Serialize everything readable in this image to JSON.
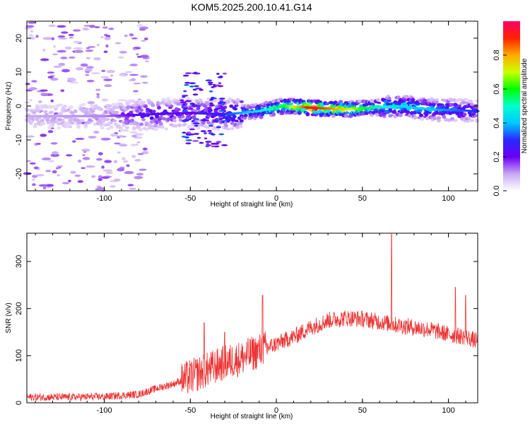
{
  "chart_data": [
    {
      "type": "heatmap",
      "title": "KOM5.2025.200.10.41.G14",
      "xlabel": "Height of straight line (km)",
      "ylabel": "Frequency (Hz)",
      "xlim": [
        -145,
        117
      ],
      "ylim": [
        -25,
        25
      ],
      "xticks": [
        -100,
        -50,
        0,
        50,
        100
      ],
      "yticks": [
        -20,
        -10,
        0,
        10,
        20
      ],
      "grid": false,
      "colorbar": {
        "label": "Normalized spectral amplitude",
        "range": [
          0,
          1
        ],
        "ticks": [
          0.0,
          0.2,
          0.4,
          0.6,
          0.8
        ],
        "colors": [
          "#ffffff",
          "#c8a8f4",
          "#6a00f4",
          "#2a28ff",
          "#00c8ff",
          "#00ffcc",
          "#00ff00",
          "#ccff00",
          "#ffaa00",
          "#ff2200",
          "#ff0066"
        ]
      },
      "ridge": [
        {
          "x": -140,
          "y": -3,
          "amp": 0.1
        },
        {
          "x": -100,
          "y": -3,
          "amp": 0.12
        },
        {
          "x": -75,
          "y": -2.5,
          "amp": 0.25
        },
        {
          "x": -50,
          "y": -2,
          "amp": 0.2
        },
        {
          "x": -30,
          "y": -2.5,
          "amp": 0.3
        },
        {
          "x": -10,
          "y": -1.5,
          "amp": 0.45
        },
        {
          "x": 5,
          "y": 0,
          "amp": 0.6
        },
        {
          "x": 20,
          "y": -0.5,
          "amp": 0.95
        },
        {
          "x": 40,
          "y": -1,
          "amp": 0.75
        },
        {
          "x": 55,
          "y": -0.5,
          "amp": 0.55
        },
        {
          "x": 70,
          "y": 0,
          "amp": 0.45
        },
        {
          "x": 90,
          "y": -1,
          "amp": 0.4
        },
        {
          "x": 117,
          "y": -1.5,
          "amp": 0.3
        }
      ]
    },
    {
      "type": "line",
      "xlabel": "Height of straight line (km)",
      "ylabel": "SNR (v/v)",
      "xlim": [
        -145,
        117
      ],
      "ylim": [
        0,
        360
      ],
      "xticks": [
        -100,
        -50,
        0,
        50,
        100
      ],
      "yticks": [
        0,
        100,
        200,
        300
      ],
      "grid": false,
      "color": "#ee3333",
      "trend": [
        {
          "x": -145,
          "y": 12
        },
        {
          "x": -120,
          "y": 12
        },
        {
          "x": -100,
          "y": 13
        },
        {
          "x": -80,
          "y": 18
        },
        {
          "x": -70,
          "y": 30
        },
        {
          "x": -60,
          "y": 40
        },
        {
          "x": -50,
          "y": 55
        },
        {
          "x": -40,
          "y": 70
        },
        {
          "x": -30,
          "y": 85
        },
        {
          "x": -20,
          "y": 95
        },
        {
          "x": -10,
          "y": 110
        },
        {
          "x": 0,
          "y": 125
        },
        {
          "x": 10,
          "y": 140
        },
        {
          "x": 20,
          "y": 160
        },
        {
          "x": 30,
          "y": 175
        },
        {
          "x": 40,
          "y": 180
        },
        {
          "x": 50,
          "y": 178
        },
        {
          "x": 60,
          "y": 172
        },
        {
          "x": 70,
          "y": 165
        },
        {
          "x": 80,
          "y": 160
        },
        {
          "x": 90,
          "y": 155
        },
        {
          "x": 100,
          "y": 145
        },
        {
          "x": 110,
          "y": 140
        },
        {
          "x": 117,
          "y": 130
        }
      ],
      "spikes": [
        {
          "x": -8,
          "y": 228
        },
        {
          "x": 67,
          "y": 358
        },
        {
          "x": 104,
          "y": 245
        },
        {
          "x": 110,
          "y": 228
        },
        {
          "x": -42,
          "y": 170
        },
        {
          "x": -30,
          "y": 150
        }
      ]
    }
  ]
}
